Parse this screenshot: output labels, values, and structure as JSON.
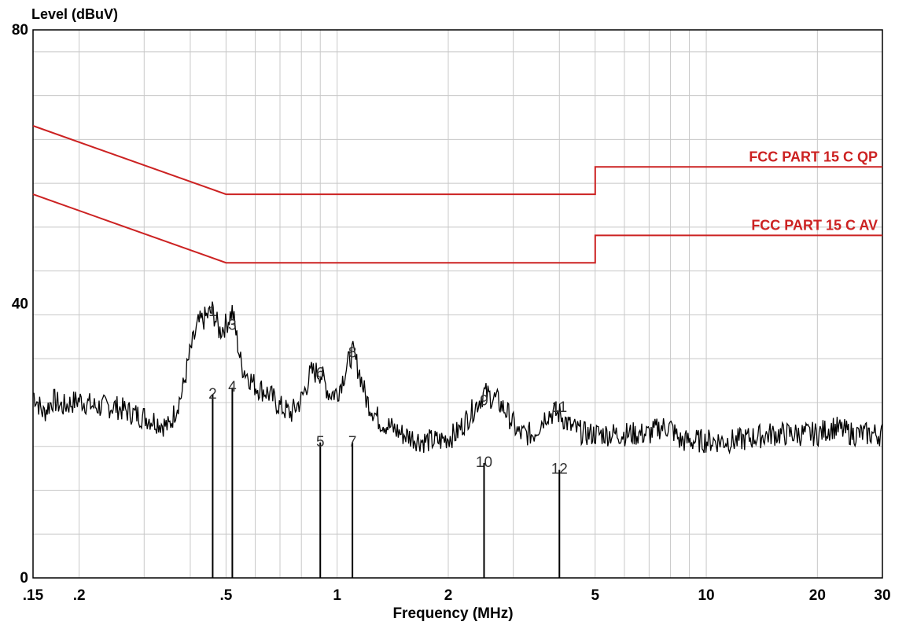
{
  "chart_data": {
    "type": "line",
    "ylabel": "Level (dBuV)",
    "xlabel": "Frequency (MHz)",
    "x_scale": "log",
    "xlim": [
      0.15,
      30
    ],
    "ylim": [
      0,
      80
    ],
    "y_ticks": [
      {
        "value": 0,
        "label": "0"
      },
      {
        "value": 40,
        "label": "40"
      },
      {
        "value": 80,
        "label": "80"
      }
    ],
    "x_ticks": [
      {
        "value": 0.15,
        "label": ".15"
      },
      {
        "value": 0.2,
        "label": ".2"
      },
      {
        "value": 0.5,
        "label": ".5"
      },
      {
        "value": 1,
        "label": "1"
      },
      {
        "value": 2,
        "label": "2"
      },
      {
        "value": 5,
        "label": "5"
      },
      {
        "value": 10,
        "label": "10"
      },
      {
        "value": 20,
        "label": "20"
      },
      {
        "value": 30,
        "label": "30"
      }
    ],
    "grid": true,
    "colors": {
      "limit": "#cc2222",
      "trace": "#000000",
      "grid": "#c8c8c8"
    },
    "limits": [
      {
        "name": "FCC PART 15 C QP",
        "points": [
          [
            0.15,
            66
          ],
          [
            0.5,
            56
          ],
          [
            5,
            56
          ],
          [
            5,
            60
          ],
          [
            30,
            60
          ]
        ]
      },
      {
        "name": "FCC PART 15 C AV",
        "points": [
          [
            0.15,
            56
          ],
          [
            0.5,
            46
          ],
          [
            5,
            46
          ],
          [
            5,
            50
          ],
          [
            30,
            50
          ]
        ]
      }
    ],
    "trace": {
      "points": [
        [
          0.15,
          27
        ],
        [
          0.16,
          24
        ],
        [
          0.17,
          26
        ],
        [
          0.18,
          25
        ],
        [
          0.2,
          26
        ],
        [
          0.22,
          25
        ],
        [
          0.25,
          25
        ],
        [
          0.28,
          24
        ],
        [
          0.32,
          23
        ],
        [
          0.35,
          22
        ],
        [
          0.38,
          27
        ],
        [
          0.4,
          33
        ],
        [
          0.42,
          37
        ],
        [
          0.44,
          38
        ],
        [
          0.46,
          39
        ],
        [
          0.48,
          36
        ],
        [
          0.5,
          37
        ],
        [
          0.52,
          39
        ],
        [
          0.55,
          31
        ],
        [
          0.6,
          28
        ],
        [
          0.65,
          27
        ],
        [
          0.7,
          25
        ],
        [
          0.75,
          24
        ],
        [
          0.8,
          26
        ],
        [
          0.85,
          30
        ],
        [
          0.9,
          30
        ],
        [
          0.95,
          27
        ],
        [
          1.0,
          27
        ],
        [
          1.05,
          30
        ],
        [
          1.1,
          33
        ],
        [
          1.15,
          30
        ],
        [
          1.2,
          26
        ],
        [
          1.3,
          23
        ],
        [
          1.5,
          21
        ],
        [
          1.7,
          20
        ],
        [
          1.9,
          20
        ],
        [
          2.1,
          21
        ],
        [
          2.3,
          24
        ],
        [
          2.5,
          27
        ],
        [
          2.7,
          26
        ],
        [
          2.9,
          24
        ],
        [
          3.1,
          21
        ],
        [
          3.4,
          21
        ],
        [
          3.7,
          24
        ],
        [
          4.0,
          24
        ],
        [
          4.3,
          22
        ],
        [
          4.7,
          21
        ],
        [
          5.0,
          21
        ],
        [
          6.0,
          21
        ],
        [
          7.0,
          21
        ],
        [
          7.5,
          22
        ],
        [
          8.0,
          22
        ],
        [
          8.5,
          20
        ],
        [
          10,
          20
        ],
        [
          12,
          20
        ],
        [
          15,
          21
        ],
        [
          18,
          21
        ],
        [
          20,
          21
        ],
        [
          22,
          22
        ],
        [
          25,
          21
        ],
        [
          30,
          21
        ]
      ]
    },
    "markers": [
      {
        "label": "1",
        "freq": 0.46,
        "level": 39
      },
      {
        "label": "2",
        "freq": 0.46,
        "level": 27
      },
      {
        "label": "3",
        "freq": 0.52,
        "level": 37
      },
      {
        "label": "4",
        "freq": 0.52,
        "level": 28
      },
      {
        "label": "5",
        "freq": 0.9,
        "level": 20
      },
      {
        "label": "6",
        "freq": 0.9,
        "level": 30
      },
      {
        "label": "7",
        "freq": 1.1,
        "level": 20
      },
      {
        "label": "8",
        "freq": 1.1,
        "level": 33
      },
      {
        "label": "9",
        "freq": 2.5,
        "level": 26
      },
      {
        "label": "10",
        "freq": 2.5,
        "level": 17
      },
      {
        "label": "11",
        "freq": 4.0,
        "level": 25
      },
      {
        "label": "12",
        "freq": 4.0,
        "level": 16
      }
    ]
  }
}
